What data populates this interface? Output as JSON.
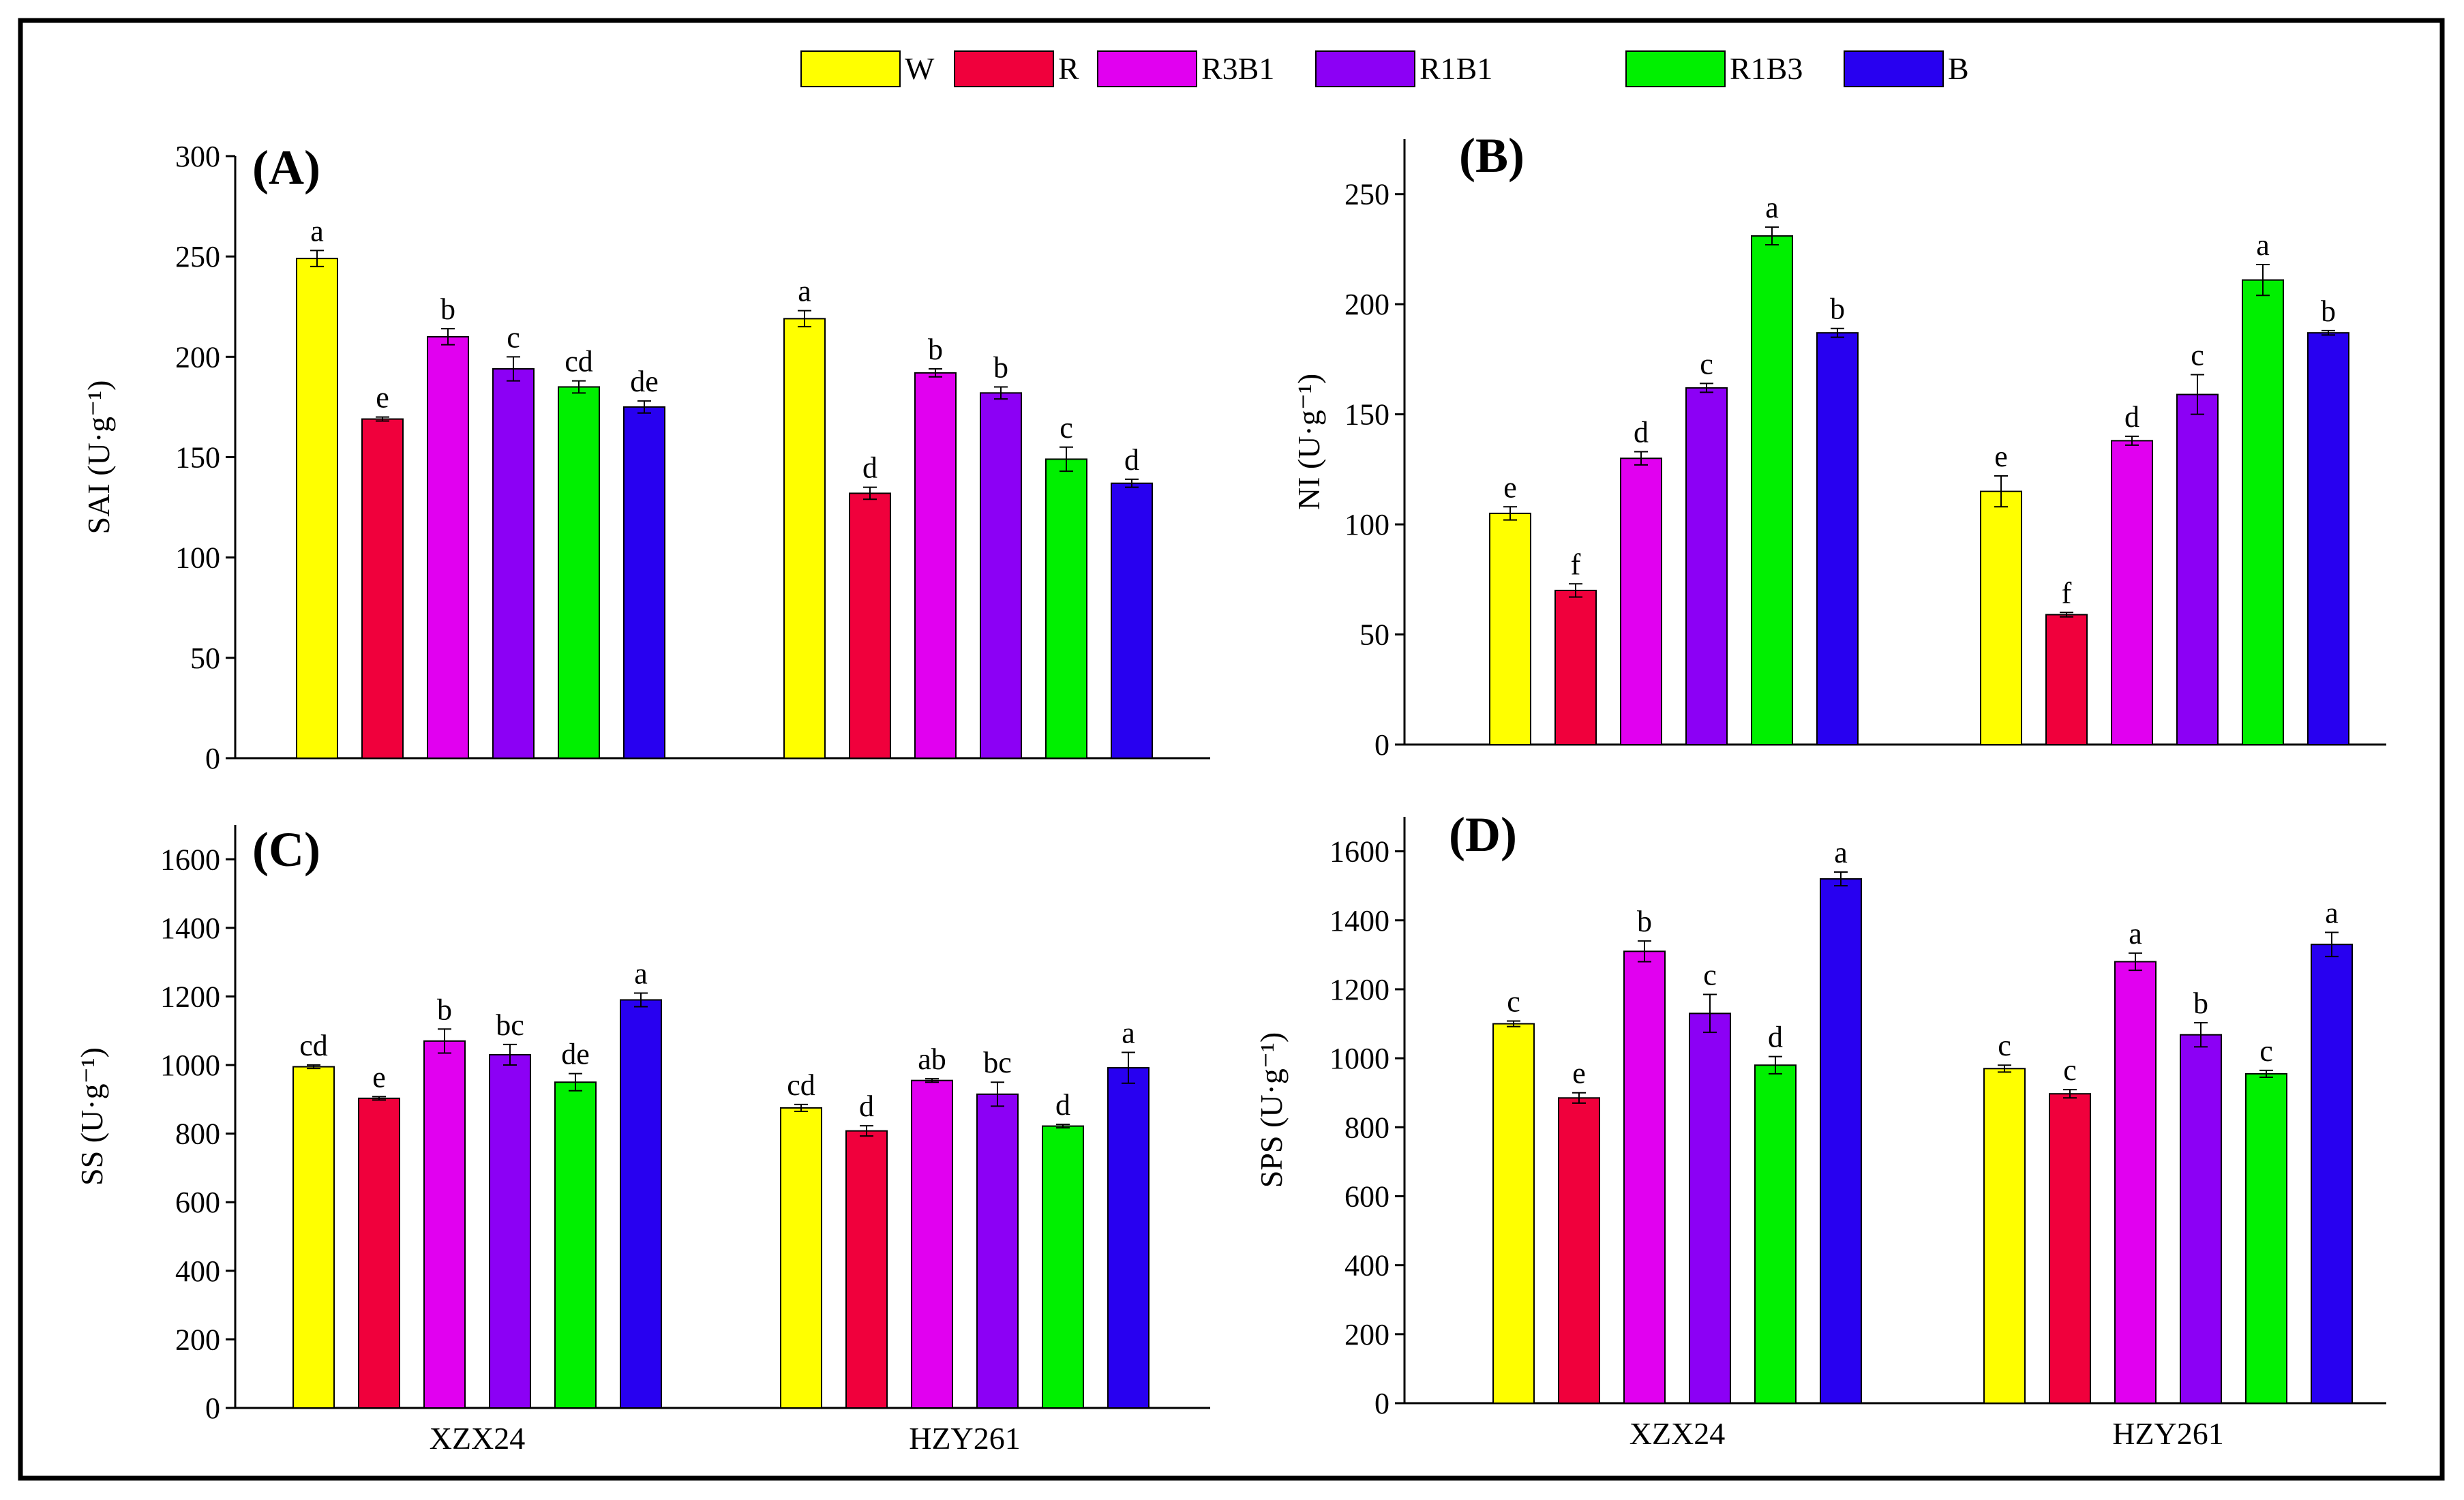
{
  "legend": [
    {
      "label": "W",
      "color": "#ffff00"
    },
    {
      "label": "R",
      "color": "#f0003c"
    },
    {
      "label": "R3B1",
      "color": "#e100f0"
    },
    {
      "label": "R1B1",
      "color": "#8c00f5"
    },
    {
      "label": "R1B3",
      "color": "#00f000"
    },
    {
      "label": "B",
      "color": "#2800f0"
    }
  ],
  "chart_data": [
    {
      "type": "bar",
      "panel_label": "(A)",
      "ylabel": "SAI (U·g⁻¹)",
      "ylim": [
        0,
        300
      ],
      "yticks": [
        0,
        50,
        100,
        150,
        200,
        250,
        300
      ],
      "groups": [
        "XZX24",
        "HZY261"
      ],
      "show_group_labels": false,
      "series": [
        {
          "name": "W",
          "values": [
            249,
            219
          ],
          "errors": [
            4,
            4
          ],
          "letters": [
            "a",
            "a"
          ]
        },
        {
          "name": "R",
          "values": [
            169,
            132
          ],
          "errors": [
            1,
            3
          ],
          "letters": [
            "e",
            "d"
          ]
        },
        {
          "name": "R3B1",
          "values": [
            210,
            192
          ],
          "errors": [
            4,
            2
          ],
          "letters": [
            "b",
            "b"
          ]
        },
        {
          "name": "R1B1",
          "values": [
            194,
            182
          ],
          "errors": [
            6,
            3
          ],
          "letters": [
            "c",
            "b"
          ]
        },
        {
          "name": "R1B3",
          "values": [
            185,
            149
          ],
          "errors": [
            3,
            6
          ],
          "letters": [
            "cd",
            "c"
          ]
        },
        {
          "name": "B",
          "values": [
            175,
            137
          ],
          "errors": [
            3,
            2
          ],
          "letters": [
            "de",
            "d"
          ]
        }
      ]
    },
    {
      "type": "bar",
      "panel_label": "(B)",
      "ylabel": "NI (U·g⁻¹)",
      "ylim": [
        0,
        275
      ],
      "yticks": [
        0,
        50,
        100,
        150,
        200,
        250
      ],
      "groups": [
        "XZX24",
        "HZY261"
      ],
      "show_group_labels": false,
      "series": [
        {
          "name": "W",
          "values": [
            105,
            115
          ],
          "errors": [
            3,
            7
          ],
          "letters": [
            "e",
            "e"
          ]
        },
        {
          "name": "R",
          "values": [
            70,
            59
          ],
          "errors": [
            3,
            1
          ],
          "letters": [
            "f",
            "f"
          ]
        },
        {
          "name": "R3B1",
          "values": [
            130,
            138
          ],
          "errors": [
            3,
            2
          ],
          "letters": [
            "d",
            "d"
          ]
        },
        {
          "name": "R1B1",
          "values": [
            162,
            159
          ],
          "errors": [
            2,
            9
          ],
          "letters": [
            "c",
            "c"
          ]
        },
        {
          "name": "R1B3",
          "values": [
            231,
            211
          ],
          "errors": [
            4,
            7
          ],
          "letters": [
            "a",
            "a"
          ]
        },
        {
          "name": "B",
          "values": [
            187,
            187
          ],
          "errors": [
            2,
            1
          ],
          "letters": [
            "b",
            "b"
          ]
        }
      ]
    },
    {
      "type": "bar",
      "panel_label": "(C)",
      "ylabel": "SS (U·g⁻¹)",
      "ylim": [
        0,
        1700
      ],
      "yticks": [
        0,
        200,
        400,
        600,
        800,
        1000,
        1200,
        1400,
        1600
      ],
      "groups": [
        "XZX24",
        "HZY261"
      ],
      "show_group_labels": true,
      "series": [
        {
          "name": "W",
          "values": [
            995,
            875
          ],
          "errors": [
            5,
            10
          ],
          "letters": [
            "cd",
            "cd"
          ]
        },
        {
          "name": "R",
          "values": [
            903,
            808
          ],
          "errors": [
            5,
            15
          ],
          "letters": [
            "e",
            "d"
          ]
        },
        {
          "name": "R3B1",
          "values": [
            1070,
            955
          ],
          "errors": [
            35,
            5
          ],
          "letters": [
            "b",
            "ab"
          ]
        },
        {
          "name": "R1B1",
          "values": [
            1030,
            915
          ],
          "errors": [
            30,
            35
          ],
          "letters": [
            "bc",
            "bc"
          ]
        },
        {
          "name": "R1B3",
          "values": [
            950,
            822
          ],
          "errors": [
            25,
            5
          ],
          "letters": [
            "de",
            "d"
          ]
        },
        {
          "name": "B",
          "values": [
            1190,
            992
          ],
          "errors": [
            20,
            45
          ],
          "letters": [
            "a",
            "a"
          ]
        }
      ]
    },
    {
      "type": "bar",
      "panel_label": "(D)",
      "ylabel": "SPS (U·g⁻¹)",
      "ylim": [
        0,
        1700
      ],
      "yticks": [
        0,
        200,
        400,
        600,
        800,
        1000,
        1200,
        1400,
        1600
      ],
      "groups": [
        "XZX24",
        "HZY261"
      ],
      "show_group_labels": true,
      "series": [
        {
          "name": "W",
          "values": [
            1100,
            970
          ],
          "errors": [
            8,
            10
          ],
          "letters": [
            "c",
            "c"
          ]
        },
        {
          "name": "R",
          "values": [
            885,
            897
          ],
          "errors": [
            15,
            12
          ],
          "letters": [
            "e",
            "c"
          ]
        },
        {
          "name": "R3B1",
          "values": [
            1310,
            1280
          ],
          "errors": [
            30,
            25
          ],
          "letters": [
            "b",
            "a"
          ]
        },
        {
          "name": "R1B1",
          "values": [
            1130,
            1068
          ],
          "errors": [
            55,
            35
          ],
          "letters": [
            "c",
            "b"
          ]
        },
        {
          "name": "R1B3",
          "values": [
            980,
            955
          ],
          "errors": [
            25,
            10
          ],
          "letters": [
            "d",
            "c"
          ]
        },
        {
          "name": "B",
          "values": [
            1520,
            1330
          ],
          "errors": [
            20,
            35
          ],
          "letters": [
            "a",
            "a"
          ]
        }
      ]
    }
  ]
}
